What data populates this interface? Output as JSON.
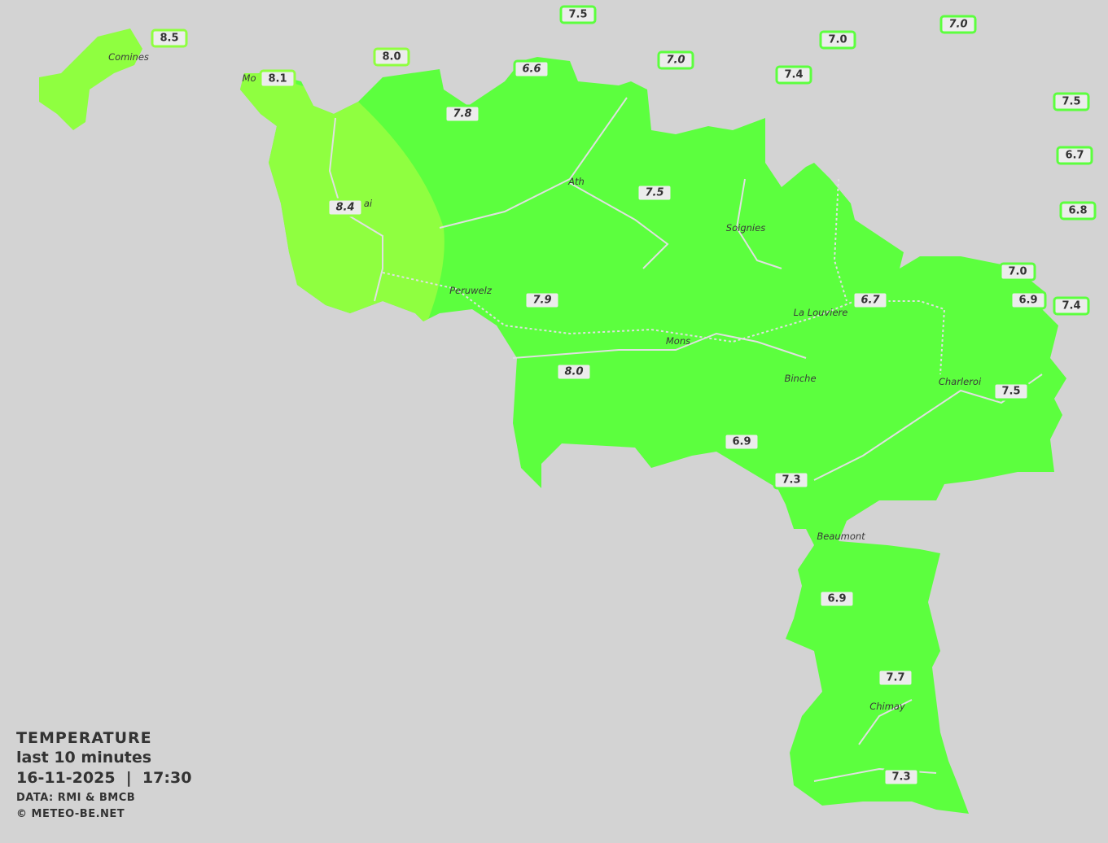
{
  "legend": {
    "title": "TEMPERATURE",
    "period": "last 10 minutes",
    "datetime": "16-11-2025  |  17:30",
    "source": "DATA: RMI & BMCB",
    "copyright": "© METEO-BE.NET"
  },
  "colors": {
    "background": "#d3d3d3",
    "fill_main": "#5cff3e",
    "fill_warm": "#8fff40",
    "rivers": "#e0e0e0"
  },
  "cities": [
    "Comines",
    "Mo",
    "ai",
    "Ath",
    "Soignies",
    "Peruwelz",
    "La Louviere",
    "Mons",
    "Binche",
    "Charleroi",
    "Beaumont",
    "Chimay"
  ],
  "stations": [
    "8.5",
    "8.1",
    "8.0",
    "7.5",
    "6.6",
    "7.8",
    "7.0",
    "7.0",
    "7.4",
    "7.0",
    "8.4",
    "7.5",
    "7.5",
    "6.7",
    "6.8",
    "7.9",
    "6.7",
    "7.0",
    "6.9",
    "7.4",
    "8.0",
    "7.5",
    "6.9",
    "7.3",
    "6.9",
    "7.7",
    "7.3"
  ]
}
